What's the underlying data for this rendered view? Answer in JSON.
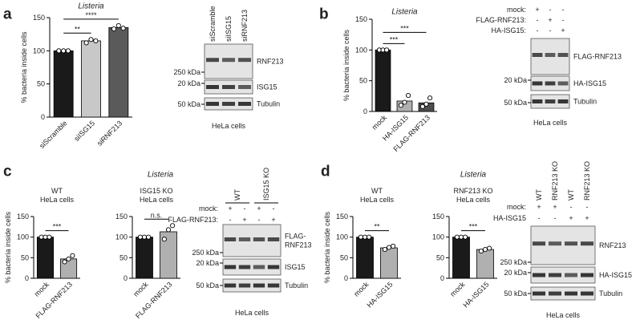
{
  "panels": [
    {
      "letter": "a"
    },
    {
      "letter": "b"
    },
    {
      "letter": "c",
      "title": "Listeria"
    },
    {
      "letter": "d",
      "title": "Listeria"
    }
  ],
  "chart_data": [
    {
      "type": "bar",
      "title": "Listeria",
      "ylabel": "% bacteria inside cells",
      "categories": [
        "siScramble",
        "siISG15",
        "siRNF213"
      ],
      "values": [
        100,
        115,
        135
      ],
      "colors": [
        "#1a1a1a",
        "#c8c8c8",
        "#5a5a5a"
      ],
      "points": [
        [
          100,
          100,
          100
        ],
        [
          112,
          117,
          115
        ],
        [
          133,
          138,
          134
        ]
      ],
      "ylim": [
        0,
        150
      ],
      "yticks": [
        0,
        50,
        100,
        150
      ],
      "annotations": [
        {
          "label": "**",
          "between": [
            "siScramble",
            "siISG15"
          ]
        },
        {
          "label": "****",
          "between": [
            "siScramble",
            "siRNF213"
          ]
        }
      ]
    },
    {
      "type": "bar",
      "title": "Listeria",
      "ylabel": "% bacteria inside cells",
      "categories": [
        "mock",
        "HA-ISG15",
        "FLAG-RNF213"
      ],
      "values": [
        100,
        17,
        14
      ],
      "colors": [
        "#1a1a1a",
        "#b0b0b0",
        "#4d4d4d"
      ],
      "points": [
        [
          100,
          100,
          100
        ],
        [
          10,
          15,
          26
        ],
        [
          8,
          12,
          22
        ]
      ],
      "ylim": [
        0,
        150
      ],
      "yticks": [
        0,
        50,
        100,
        150
      ],
      "annotations": [
        {
          "label": "***",
          "between": [
            "mock",
            "HA-ISG15"
          ]
        },
        {
          "label": "***",
          "between": [
            "mock",
            "FLAG-RNF213"
          ]
        }
      ]
    },
    {
      "type": "bar",
      "subtitle": [
        "WT",
        "HeLa cells"
      ],
      "ylabel": "% bacteria inside cells",
      "categories": [
        "mock",
        "FLAG-RNF213"
      ],
      "values": [
        100,
        47
      ],
      "colors": [
        "#1a1a1a",
        "#b0b0b0"
      ],
      "points": [
        [
          100,
          100,
          100
        ],
        [
          40,
          47,
          55
        ]
      ],
      "ylim": [
        0,
        150
      ],
      "yticks": [
        0,
        50,
        100,
        150
      ],
      "annotations": [
        {
          "label": "***",
          "between": [
            "mock",
            "FLAG-RNF213"
          ]
        }
      ]
    },
    {
      "type": "bar",
      "subtitle": [
        "ISG15 KO",
        "HeLa cells"
      ],
      "categories": [
        "mock",
        "FLAG-RNF213"
      ],
      "values": [
        100,
        113
      ],
      "colors": [
        "#1a1a1a",
        "#b0b0b0"
      ],
      "points": [
        [
          100,
          100,
          100
        ],
        [
          95,
          118,
          128
        ]
      ],
      "ylim": [
        0,
        150
      ],
      "yticks": [
        0,
        50,
        100,
        150
      ],
      "annotations": [
        {
          "label": "n.s.",
          "between": [
            "mock",
            "FLAG-RNF213"
          ]
        }
      ]
    },
    {
      "type": "bar",
      "subtitle": [
        "WT",
        "HeLa cells"
      ],
      "ylabel": "% bacteria inside cells",
      "categories": [
        "mock",
        "HA-ISG15"
      ],
      "values": [
        100,
        74
      ],
      "colors": [
        "#1a1a1a",
        "#b0b0b0"
      ],
      "points": [
        [
          100,
          100,
          100
        ],
        [
          70,
          75,
          78
        ]
      ],
      "ylim": [
        0,
        150
      ],
      "yticks": [
        0,
        50,
        100,
        150
      ],
      "annotations": [
        {
          "label": "**",
          "between": [
            "mock",
            "HA-ISG15"
          ]
        }
      ]
    },
    {
      "type": "bar",
      "subtitle": [
        "RNF213 KO",
        "HeLa cells"
      ],
      "categories": [
        "mock",
        "HA-ISG15"
      ],
      "values": [
        100,
        70
      ],
      "colors": [
        "#1a1a1a",
        "#b0b0b0"
      ],
      "points": [
        [
          100,
          100,
          100
        ],
        [
          66,
          70,
          73
        ]
      ],
      "ylim": [
        0,
        150
      ],
      "yticks": [
        0,
        50,
        100,
        150
      ],
      "annotations": [
        {
          "label": "***",
          "between": [
            "mock",
            "HA-ISG15"
          ]
        }
      ]
    }
  ],
  "blots": [
    {
      "caption": "HeLa cells",
      "lanes": [
        "siScramble",
        "siISG15",
        "siRNF213"
      ],
      "markers": [
        "250 kDa",
        "20 kDa",
        "50 kDa"
      ],
      "bands": [
        [
          "RNF213"
        ],
        [
          "ISG15"
        ],
        [
          "Tubulin"
        ]
      ]
    },
    {
      "caption": "HeLa cells",
      "conditions": [
        {
          "label": "mock:",
          "signs": [
            "+",
            "-",
            "-"
          ]
        },
        {
          "label": "FLAG-RNF213:",
          "signs": [
            "-",
            "+",
            "-"
          ]
        },
        {
          "label": "HA-ISG15:",
          "signs": [
            "-",
            "-",
            "+"
          ]
        }
      ],
      "markers": [
        "20 kDa",
        "50 kDa"
      ],
      "bands": [
        [
          "FLAG-RNF213"
        ],
        [
          "HA-ISG15"
        ],
        [
          "Tubulin"
        ]
      ]
    },
    {
      "caption": "HeLa cells",
      "groups": [
        "WT",
        "ISG15 KO"
      ],
      "conditions": [
        {
          "label": "mock:",
          "signs": [
            "+",
            "-",
            "+",
            "-"
          ]
        },
        {
          "label": "FLAG-RNF213:",
          "signs": [
            "-",
            "+",
            "-",
            "+"
          ]
        }
      ],
      "markers": [
        "250 kDa",
        "20 kDa",
        "50 kDa"
      ],
      "bands": [
        [
          "FLAG-",
          "RNF213"
        ],
        [
          "ISG15"
        ],
        [
          "Tubulin"
        ]
      ]
    },
    {
      "caption": "HeLa cells",
      "groups": [
        "WT",
        "RNF213 KO",
        "WT",
        "RNF213 KO"
      ],
      "conditions": [
        {
          "label": "mock:",
          "signs": [
            "+",
            "+",
            "-",
            "-"
          ]
        },
        {
          "label": "HA-ISG15",
          "signs": [
            "-",
            "-",
            "+",
            "+"
          ]
        }
      ],
      "markers": [
        "250 kDa",
        "20 kDa",
        "50 kDa"
      ],
      "bands": [
        [
          "RNF213"
        ],
        [
          "HA-ISG15"
        ],
        [
          "Tubulin"
        ]
      ]
    }
  ]
}
